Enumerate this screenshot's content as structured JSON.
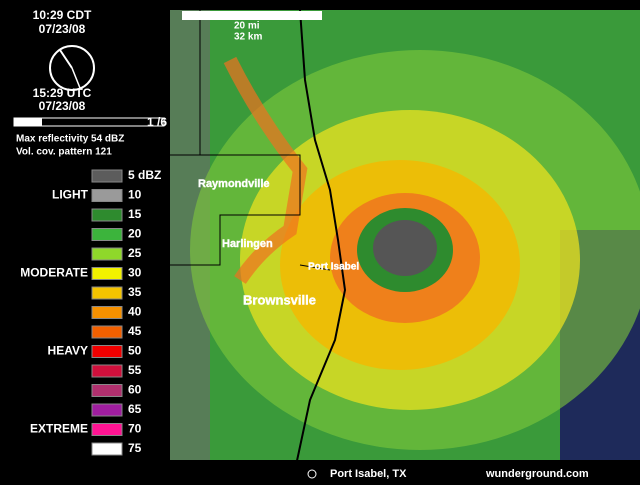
{
  "header": {
    "time_local": "10:29 CDT",
    "date_local": "07/23/08",
    "time_utc": "15:29 UTC",
    "date_utc": "07/23/08",
    "frame": "1 /6",
    "max_reflectivity": "Max reflectivity 54 dBZ",
    "volume_pattern": "Vol. cov. pattern 121"
  },
  "legend": {
    "intensity": [
      {
        "label": "LIGHT",
        "row": 1
      },
      {
        "label": "MODERATE",
        "row": 5
      },
      {
        "label": "HEAVY",
        "row": 9
      },
      {
        "label": "EXTREME",
        "row": 13
      }
    ],
    "entries": [
      {
        "label": "5 dBZ",
        "color": "#5c5c5c"
      },
      {
        "label": "10",
        "color": "#9a9a9a"
      },
      {
        "label": "15",
        "color": "#2e8b2e"
      },
      {
        "label": "20",
        "color": "#3cb43c"
      },
      {
        "label": "25",
        "color": "#8fd82a"
      },
      {
        "label": "30",
        "color": "#f2f200"
      },
      {
        "label": "35",
        "color": "#f5c400"
      },
      {
        "label": "40",
        "color": "#f59000"
      },
      {
        "label": "45",
        "color": "#f26000"
      },
      {
        "label": "50",
        "color": "#f00000"
      },
      {
        "label": "55",
        "color": "#d0103c"
      },
      {
        "label": "60",
        "color": "#b0306e"
      },
      {
        "label": "65",
        "color": "#a01ea0"
      },
      {
        "label": "70",
        "color": "#ff1493"
      },
      {
        "label": "75",
        "color": "#ffffff"
      }
    ]
  },
  "map": {
    "scale_miles": "20 mi",
    "scale_km": "32 km",
    "places": [
      "Raymondville",
      "Harlingen",
      "Port Isabel",
      "Brownsville"
    ],
    "station": "Port Isabel, TX",
    "credit": "wunderground.com"
  }
}
